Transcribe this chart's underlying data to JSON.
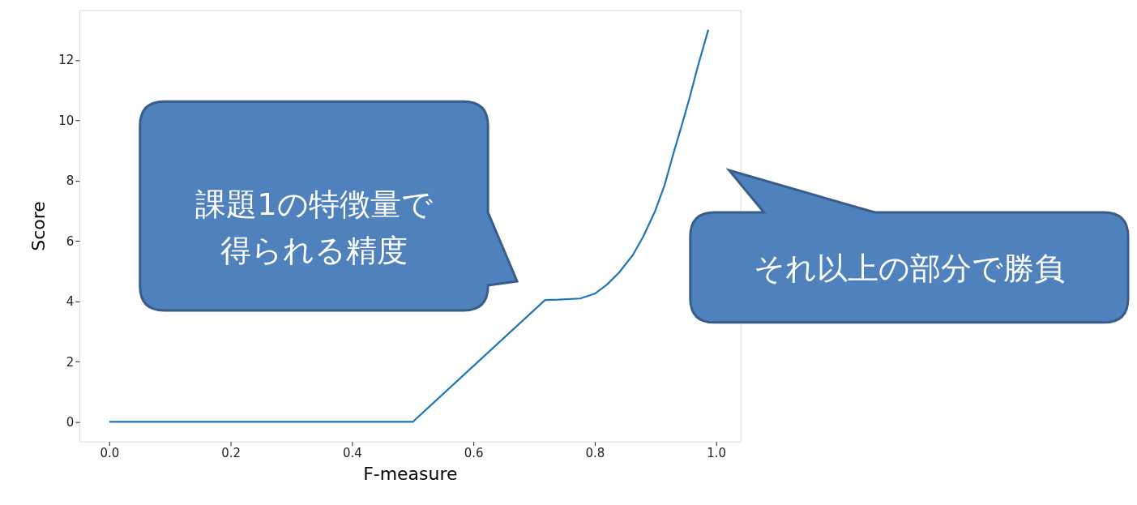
{
  "chart_data": {
    "type": "line",
    "xlabel": "F-measure",
    "ylabel": "Score",
    "x": [
      0.0,
      0.5,
      0.718,
      0.74,
      0.776,
      0.8,
      0.82,
      0.84,
      0.863,
      0.88,
      0.899,
      0.915,
      0.93,
      0.945,
      0.956,
      0.97,
      0.987
    ],
    "series": [
      {
        "color": "#1f77b4",
        "values": [
          0,
          0,
          4.04,
          4.05,
          4.09,
          4.25,
          4.55,
          4.95,
          5.54,
          6.15,
          6.97,
          7.85,
          8.93,
          9.95,
          10.73,
          11.8,
          13.0
        ]
      }
    ],
    "xlim": [
      -0.0495,
      1.04
    ],
    "ylim": [
      -0.65,
      13.65
    ],
    "xticks": [
      {
        "value": 0,
        "label": "0.0"
      },
      {
        "value": 0.2,
        "label": "0.2"
      },
      {
        "value": 0.4,
        "label": "0.4"
      },
      {
        "value": 0.6,
        "label": "0.6"
      },
      {
        "value": 0.8,
        "label": "0.8"
      },
      {
        "value": 1.0,
        "label": "1.0"
      }
    ],
    "yticks": [
      0,
      2,
      4,
      6,
      8,
      10,
      12
    ],
    "grid": false,
    "legend": false,
    "marker": "none",
    "line_style": "solid",
    "annotations": [
      "課題1の特徴量で得られる精度",
      "それ以上の部分で勝負"
    ]
  }
}
